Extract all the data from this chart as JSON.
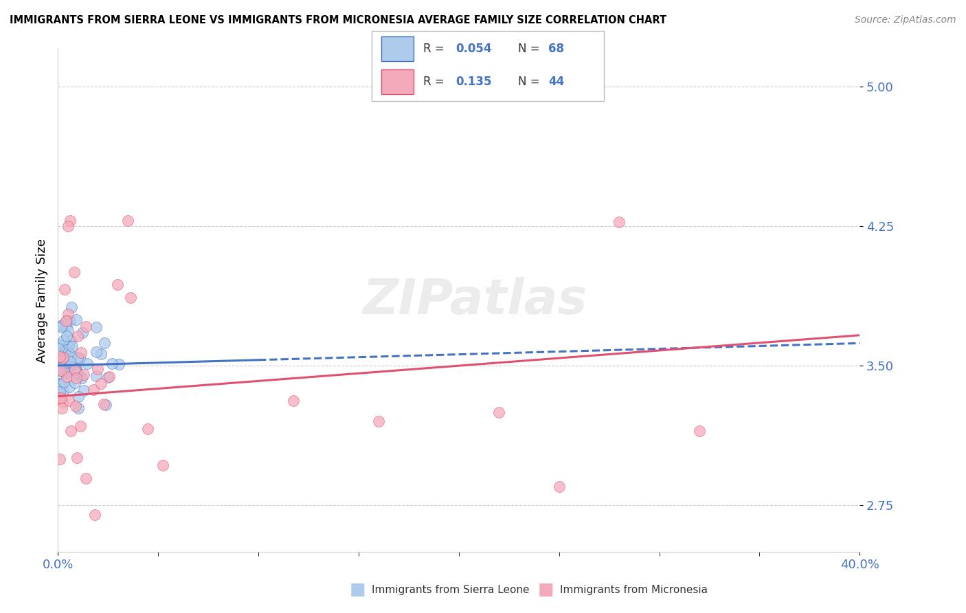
{
  "title": "IMMIGRANTS FROM SIERRA LEONE VS IMMIGRANTS FROM MICRONESIA AVERAGE FAMILY SIZE CORRELATION CHART",
  "source": "Source: ZipAtlas.com",
  "ylabel": "Average Family Size",
  "xlim": [
    0.0,
    0.4
  ],
  "ylim": [
    2.5,
    5.2
  ],
  "yticks": [
    2.75,
    3.5,
    4.25,
    5.0
  ],
  "xtick_labels": [
    "0.0%",
    "40.0%"
  ],
  "color_blue": "#AECBEC",
  "color_pink": "#F5AABB",
  "color_blue_line": "#4472C4",
  "color_pink_line": "#E05070",
  "color_axis_text": "#4472C4",
  "color_grid": "#CCCCCC",
  "watermark": "ZIPatlas",
  "legend_box_edge": "#BBBBBB"
}
